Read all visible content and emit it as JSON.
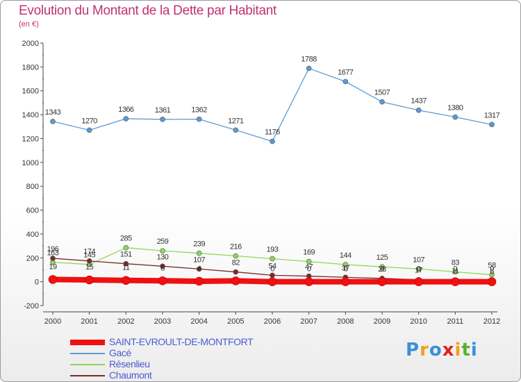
{
  "title": "Evolution du Montant de la Dette par Habitant",
  "subtitle": "(en €)",
  "chart_data": {
    "type": "line",
    "title": "Evolution du Montant de la Dette par Habitant",
    "subtitle": "(en €)",
    "x": [
      "2000",
      "2001",
      "2002",
      "2003",
      "2004",
      "2005",
      "2006",
      "2007",
      "2008",
      "2009",
      "2010",
      "2011",
      "2012"
    ],
    "ylim": [
      -200,
      2000
    ],
    "yticks": [
      "-200",
      "0",
      "200",
      "400",
      "600",
      "800",
      "1000",
      "1200",
      "1400",
      "1600",
      "1800",
      "2000"
    ],
    "grid": false,
    "legend_position": "bottom-left",
    "series": [
      {
        "name": "SAINT-EVROULT-DE-MONTFORT",
        "color": "#ee1111",
        "values": [
          19,
          15,
          11,
          8,
          4,
          7,
          0,
          0,
          0,
          0,
          0,
          0,
          0
        ],
        "labels": [
          "19",
          "15",
          "11",
          "8",
          "4",
          "",
          "0",
          "0",
          "0",
          "0",
          "0",
          "0",
          "0"
        ]
      },
      {
        "name": "Gacé",
        "color": "#5b9bd5",
        "values": [
          1343,
          1270,
          1366,
          1361,
          1362,
          1271,
          1176,
          1788,
          1677,
          1507,
          1437,
          1380,
          1317
        ],
        "labels": [
          "1343",
          "1270",
          "1366",
          "1361",
          "1362",
          "1271",
          "1176",
          "1788",
          "1677",
          "1507",
          "1437",
          "1380",
          "1317"
        ]
      },
      {
        "name": "Résenlieu",
        "color": "#8ed65a",
        "values": [
          163,
          145,
          285,
          259,
          239,
          216,
          193,
          169,
          144,
          125,
          107,
          83,
          58
        ],
        "labels": [
          "163",
          "145",
          "285",
          "259",
          "239",
          "216",
          "193",
          "169",
          "144",
          "125",
          "107",
          "83",
          "58"
        ]
      },
      {
        "name": "Chaumont",
        "color": "#7a2a2a",
        "values": [
          196,
          174,
          151,
          130,
          107,
          82,
          54,
          47,
          37,
          28,
          17,
          11,
          6
        ],
        "labels": [
          "196",
          "174",
          "151",
          "130",
          "107",
          "82",
          "54",
          "47",
          "37",
          "28",
          "17",
          "11",
          "6"
        ]
      }
    ]
  },
  "legend": [
    {
      "label": "SAINT-EVROULT-DE-MONTFORT",
      "color": "#ee1111"
    },
    {
      "label": "Gacé",
      "color": "#5b9bd5"
    },
    {
      "label": "Résenlieu",
      "color": "#8ed65a"
    },
    {
      "label": "Chaumont",
      "color": "#7a2a2a"
    }
  ],
  "logo": {
    "text": "Proxiti",
    "colors": [
      "#3a8fd8",
      "#f0a020",
      "#3a8fd8",
      "#e02020",
      "#f0a020",
      "#5ab030",
      "#3a8fd8"
    ]
  }
}
